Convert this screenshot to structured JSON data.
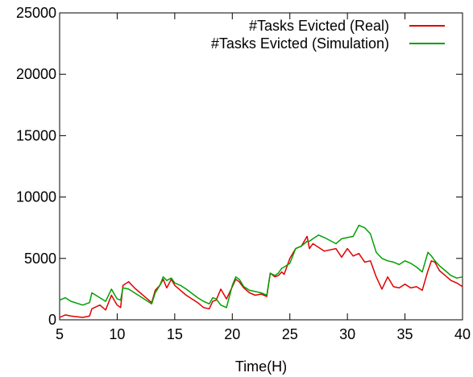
{
  "chart_data": {
    "type": "line",
    "title": "",
    "xlabel": "Time(H)",
    "ylabel": "",
    "xlim": [
      5,
      40
    ],
    "ylim": [
      0,
      25000
    ],
    "x_ticks": [
      5,
      10,
      15,
      20,
      25,
      30,
      35,
      40
    ],
    "y_ticks": [
      0,
      5000,
      10000,
      15000,
      20000,
      25000
    ],
    "grid": false,
    "legend_position": "top-right",
    "series": [
      {
        "name": "#Tasks Evicted (Real)",
        "color": "#e00000",
        "x": [
          5,
          5.5,
          6,
          7,
          7.6,
          7.8,
          8.5,
          9,
          9.5,
          9.8,
          10,
          10.3,
          10.5,
          11,
          11.5,
          12,
          12.5,
          13,
          13.3,
          13.7,
          14,
          14.3,
          14.7,
          15,
          15.5,
          16,
          17,
          17.5,
          18,
          18.3,
          18.6,
          19,
          19.5,
          20,
          20.3,
          20.6,
          21,
          21.5,
          22,
          22.5,
          23,
          23.3,
          23.7,
          24,
          24.3,
          24.5,
          25,
          25.5,
          26,
          26.5,
          26.7,
          27,
          27.5,
          28,
          29,
          29.5,
          30,
          30.5,
          31,
          31.5,
          32,
          32.5,
          33,
          33.5,
          34,
          34.5,
          35,
          35.5,
          36,
          36.5,
          37,
          37.3,
          37.6,
          38,
          38.5,
          39,
          39.5,
          40
        ],
        "y": [
          200,
          400,
          300,
          200,
          300,
          900,
          1200,
          800,
          2000,
          1500,
          1200,
          1000,
          2800,
          3100,
          2600,
          2200,
          1800,
          1400,
          2400,
          2800,
          3300,
          2600,
          3300,
          2800,
          2400,
          2000,
          1400,
          1000,
          900,
          1500,
          1600,
          2500,
          1700,
          2700,
          3300,
          3100,
          2600,
          2200,
          2000,
          2100,
          1900,
          3800,
          3500,
          3600,
          3900,
          3700,
          5000,
          5800,
          6000,
          6800,
          5800,
          6200,
          5900,
          5600,
          5800,
          5100,
          5800,
          5200,
          5400,
          4700,
          4800,
          3500,
          2500,
          3500,
          2700,
          2600,
          2900,
          2600,
          2700,
          2400,
          4000,
          4800,
          4700,
          4000,
          3600,
          3200,
          3000,
          2700
        ]
      },
      {
        "name": "#Tasks Evicted (Simulation)",
        "color": "#00a000",
        "x": [
          5,
          5.5,
          6,
          7,
          7.6,
          7.8,
          8.5,
          9,
          9.5,
          9.8,
          10,
          10.3,
          10.5,
          11,
          11.5,
          12,
          12.5,
          13,
          13.3,
          13.7,
          14,
          14.3,
          14.7,
          15,
          15.5,
          16,
          17,
          17.5,
          18,
          18.3,
          18.6,
          19,
          19.5,
          20,
          20.3,
          20.6,
          21,
          21.5,
          22,
          22.5,
          23,
          23.3,
          23.7,
          24,
          24.3,
          24.5,
          25,
          25.5,
          26,
          26.5,
          26.7,
          27,
          27.5,
          28,
          29,
          29.5,
          30,
          30.5,
          31,
          31.5,
          32,
          32.5,
          33,
          33.5,
          34,
          34.5,
          35,
          35.5,
          36,
          36.5,
          37,
          37.3,
          37.6,
          38,
          38.5,
          39,
          39.5,
          40
        ],
        "y": [
          1600,
          1800,
          1500,
          1200,
          1400,
          2200,
          1800,
          1500,
          2500,
          2000,
          1700,
          1600,
          2600,
          2500,
          2200,
          1900,
          1600,
          1300,
          2200,
          2800,
          3500,
          3200,
          3400,
          3000,
          2800,
          2500,
          1800,
          1500,
          1300,
          1800,
          1700,
          1200,
          1000,
          2800,
          3500,
          3300,
          2700,
          2400,
          2300,
          2200,
          2000,
          3800,
          3600,
          3800,
          4200,
          4300,
          4600,
          5800,
          6000,
          6400,
          6400,
          6600,
          6900,
          6700,
          6200,
          6600,
          6700,
          6800,
          7700,
          7500,
          7000,
          5500,
          5000,
          4800,
          4700,
          4500,
          4800,
          4600,
          4300,
          3900,
          5500,
          5200,
          4800,
          4400,
          4000,
          3600,
          3400,
          3500
        ]
      }
    ]
  }
}
